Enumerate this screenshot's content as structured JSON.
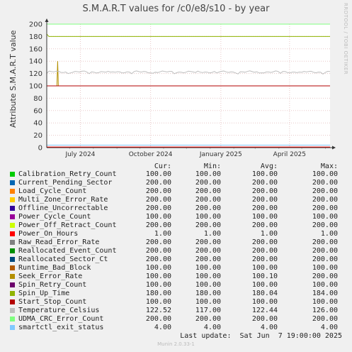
{
  "title": "S.M.A.R.T values for /c0/e8/s10 - by year",
  "ylabel": "Attribute S.M.A.R.T value",
  "side_text": "RRDTOOL / TOBI OETIKER",
  "footer": "Munin 2.0.33-1",
  "last_update": "Last update:  Sat Jun  7 19:00:00 2025",
  "columns": [
    "Cur:",
    "Min:",
    "Avg:",
    "Max:"
  ],
  "chart_data": {
    "type": "line",
    "title": "S.M.A.R.T values for /c0/e8/s10 - by year",
    "ylabel": "Attribute S.M.A.R.T value",
    "ylim": [
      0,
      200
    ],
    "yticks": [
      0,
      20,
      40,
      60,
      80,
      100,
      120,
      140,
      160,
      180,
      200
    ],
    "xrange": [
      "2024-06-01",
      "2025-06-07"
    ],
    "xticks": [
      {
        "label": "July 2024",
        "date": "2024-07-15"
      },
      {
        "label": "October 2024",
        "date": "2024-10-15"
      },
      {
        "label": "January 2025",
        "date": "2025-01-15"
      },
      {
        "label": "April 2025",
        "date": "2025-04-15"
      }
    ],
    "grid": true,
    "legend_position": "bottom",
    "series": [
      {
        "name": "Calibration_Retry_Count",
        "color": "#00cc00",
        "cur": "100.00",
        "min": "100.00",
        "avg": "100.00",
        "max": "100.00"
      },
      {
        "name": "Current_Pending_Sector",
        "color": "#0066b3",
        "cur": "200.00",
        "min": "200.00",
        "avg": "200.00",
        "max": "200.00"
      },
      {
        "name": "Load_Cycle_Count",
        "color": "#ff8000",
        "cur": "200.00",
        "min": "200.00",
        "avg": "200.00",
        "max": "200.00"
      },
      {
        "name": "Multi_Zone_Error_Rate",
        "color": "#ffcc00",
        "cur": "200.00",
        "min": "200.00",
        "avg": "200.00",
        "max": "200.00"
      },
      {
        "name": "Offline_Uncorrectable",
        "color": "#330099",
        "cur": "200.00",
        "min": "200.00",
        "avg": "200.00",
        "max": "200.00"
      },
      {
        "name": "Power_Cycle_Count",
        "color": "#990099",
        "cur": "100.00",
        "min": "100.00",
        "avg": "100.00",
        "max": "100.00"
      },
      {
        "name": "Power_Off_Retract_Count",
        "color": "#ccff00",
        "cur": "200.00",
        "min": "200.00",
        "avg": "200.00",
        "max": "200.00"
      },
      {
        "name": "Power_On_Hours",
        "color": "#ff0000",
        "cur": "1.00",
        "min": "1.00",
        "avg": "1.00",
        "max": "1.00"
      },
      {
        "name": "Raw_Read_Error_Rate",
        "color": "#808080",
        "cur": "200.00",
        "min": "200.00",
        "avg": "200.00",
        "max": "200.00"
      },
      {
        "name": "Reallocated_Event_Count",
        "color": "#008f00",
        "cur": "200.00",
        "min": "200.00",
        "avg": "200.00",
        "max": "200.00"
      },
      {
        "name": "Reallocated_Sector_Ct",
        "color": "#00487d",
        "cur": "200.00",
        "min": "200.00",
        "avg": "200.00",
        "max": "200.00"
      },
      {
        "name": "Runtime_Bad_Block",
        "color": "#b35a00",
        "cur": "100.00",
        "min": "100.00",
        "avg": "100.00",
        "max": "100.00"
      },
      {
        "name": "Seek_Error_Rate",
        "color": "#b38f00",
        "cur": "100.00",
        "min": "100.00",
        "avg": "100.10",
        "max": "200.00"
      },
      {
        "name": "Spin_Retry_Count",
        "color": "#6b006b",
        "cur": "100.00",
        "min": "100.00",
        "avg": "100.00",
        "max": "100.00"
      },
      {
        "name": "Spin_Up_Time",
        "color": "#8fb300",
        "cur": "180.00",
        "min": "180.00",
        "avg": "180.04",
        "max": "184.00"
      },
      {
        "name": "Start_Stop_Count",
        "color": "#b30000",
        "cur": "100.00",
        "min": "100.00",
        "avg": "100.00",
        "max": "100.00"
      },
      {
        "name": "Temperature_Celsius",
        "color": "#bebebe",
        "cur": "122.52",
        "min": "117.00",
        "avg": "122.44",
        "max": "126.00"
      },
      {
        "name": "UDMA_CRC_Error_Count",
        "color": "#80ff80",
        "cur": "200.00",
        "min": "200.00",
        "avg": "200.00",
        "max": "200.00"
      },
      {
        "name": "smartctl_exit_status",
        "color": "#80c9ff",
        "cur": "4.00",
        "min": "4.00",
        "avg": "4.00",
        "max": "4.00"
      }
    ]
  }
}
